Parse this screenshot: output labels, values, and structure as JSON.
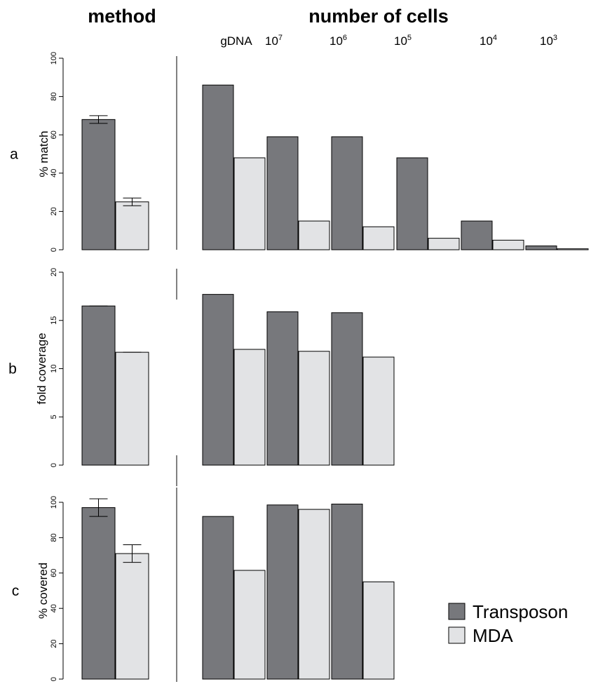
{
  "chart_data": {
    "type": "bar",
    "headers": {
      "method": "method",
      "cells": "number of cells"
    },
    "method_categories": [
      "Transposon",
      "MDA"
    ],
    "cell_categories": [
      {
        "base": "gDNA",
        "sup": ""
      },
      {
        "base": "10",
        "sup": "7"
      },
      {
        "base": "10",
        "sup": "6"
      },
      {
        "base": "10",
        "sup": "5"
      },
      {
        "base": "10",
        "sup": "4"
      },
      {
        "base": "10",
        "sup": "3"
      }
    ],
    "legend": [
      {
        "name": "Transposon",
        "color": "#77787c"
      },
      {
        "name": "MDA",
        "color": "#e2e3e5"
      }
    ],
    "legend_position": "bottom-right",
    "panels": [
      {
        "label": "a",
        "ylabel": "% match",
        "ylim": [
          0,
          100
        ],
        "yticks": [
          0,
          20,
          40,
          60,
          80,
          100
        ],
        "method": {
          "values": [
            68,
            25
          ],
          "errors": [
            2,
            2
          ]
        },
        "cells": {
          "Transposon": [
            86,
            59,
            59,
            48,
            15,
            2
          ],
          "MDA": [
            48,
            15,
            12,
            6,
            5,
            0.5
          ]
        }
      },
      {
        "label": "b",
        "ylabel": "fold coverage",
        "ylim": [
          0,
          20
        ],
        "yticks": [
          0,
          5,
          10,
          15,
          20
        ],
        "method": {
          "values": [
            16.5,
            11.7
          ],
          "errors": [
            0,
            0
          ]
        },
        "cells": {
          "Transposon": [
            17.7,
            15.9,
            15.8
          ],
          "MDA": [
            12,
            11.8,
            11.2
          ]
        }
      },
      {
        "label": "c",
        "ylabel": "% covered",
        "ylim": [
          0,
          100
        ],
        "yticks": [
          0,
          20,
          40,
          60,
          80,
          100
        ],
        "method": {
          "values": [
            97,
            71
          ],
          "errors": [
            5,
            5
          ]
        },
        "cells": {
          "Transposon": [
            92,
            98.5,
            99
          ],
          "MDA": [
            61.5,
            96,
            55
          ]
        }
      }
    ]
  }
}
